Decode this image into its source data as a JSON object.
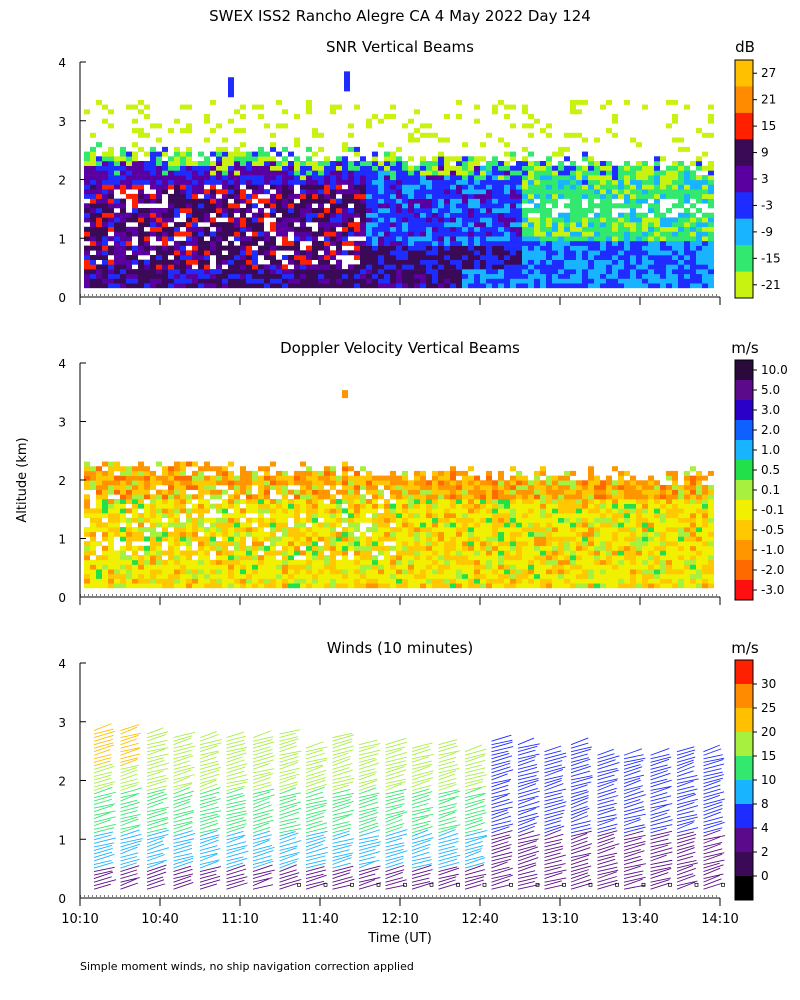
{
  "page": {
    "title": "SWEX ISS2 Rancho Alegre CA   4 May 2022 Day 124",
    "ylabel": "Altitude (km)",
    "xlabel": "Time (UT)",
    "footnote": "Simple moment winds, no ship navigation correction applied"
  },
  "chart_data": [
    {
      "type": "heatmap",
      "title": "SNR Vertical Beams",
      "units": "dB",
      "ylim": [
        0,
        4
      ],
      "yticks": [
        "0",
        "1",
        "2",
        "3",
        "4"
      ],
      "colorbar": {
        "labels": [
          "27",
          "21",
          "15",
          "9",
          "3",
          "-3",
          "-9",
          "-15",
          "-21"
        ],
        "colors": [
          "#ffc000",
          "#ff8c00",
          "#ff2000",
          "#3a0a56",
          "#5a00a0",
          "#1e2cff",
          "#18b4ff",
          "#33e86e",
          "#c8f20f"
        ]
      },
      "description_rows": [
        {
          "alt_km": [
            0.1,
            0.5
          ],
          "dominant": "9"
        },
        {
          "alt_km": [
            0.5,
            1.8
          ],
          "dominant": "15"
        },
        {
          "alt_km": [
            1.8,
            2.3
          ],
          "dominant": "-3"
        },
        {
          "alt_km": [
            2.3,
            3.2
          ],
          "dominant": "-21"
        }
      ]
    },
    {
      "type": "heatmap",
      "title": "Doppler Velocity Vertical Beams",
      "units": "m/s",
      "ylim": [
        0,
        4
      ],
      "yticks": [
        "0",
        "1",
        "2",
        "3",
        "4"
      ],
      "colorbar": {
        "labels": [
          "10.0",
          "5.0",
          "3.0",
          "2.0",
          "1.0",
          "0.5",
          "0.1",
          "-0.1",
          "-0.5",
          "-1.0",
          "-2.0",
          "-3.0"
        ],
        "colors": [
          "#2a0a3a",
          "#5a0a8a",
          "#2a00c8",
          "#1060ff",
          "#18b4ff",
          "#22e04a",
          "#a8f040",
          "#f0f000",
          "#ffc800",
          "#ff9600",
          "#ff6a00",
          "#ff1010"
        ]
      }
    },
    {
      "type": "scatter",
      "title": "Winds (10 minutes)",
      "units": "m/s",
      "ylim": [
        0,
        4
      ],
      "yticks": [
        "0",
        "1",
        "2",
        "3",
        "4"
      ],
      "x": [
        "10:10",
        "10:40",
        "11:10",
        "11:40",
        "12:10",
        "12:40",
        "13:10",
        "13:40",
        "14:10"
      ],
      "colorbar": {
        "labels": [
          "30",
          "25",
          "20",
          "15",
          "10",
          "8",
          "4",
          "2",
          "0"
        ],
        "colors": [
          "#ff2000",
          "#ff8c00",
          "#ffc000",
          "#a8f040",
          "#33e86e",
          "#18b4ff",
          "#1e2cff",
          "#5a0a8a",
          "#3a0a56",
          "#000000"
        ]
      }
    }
  ]
}
